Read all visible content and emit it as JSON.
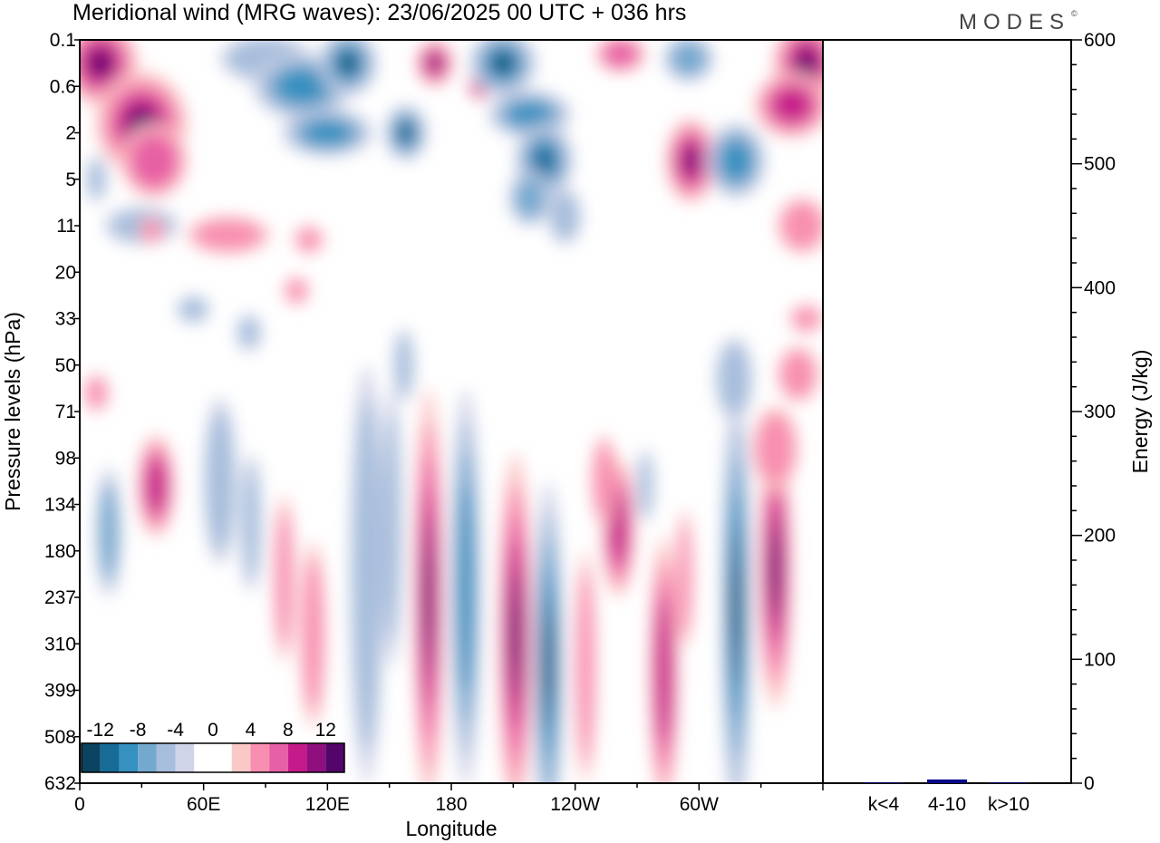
{
  "title": "Meridional wind (MRG waves):  23/06/2025  00 UTC  + 036 hrs",
  "brand": "MODES",
  "brand_mark": "©",
  "colors": {
    "neg": [
      "#0a4460",
      "#176b97",
      "#3690c0",
      "#74a9cf",
      "#a6bddb",
      "#d0d4e8"
    ],
    "pos": [
      "#fbc8c8",
      "#f88fb0",
      "#e75fa5",
      "#c51b8a",
      "#8e0f7d",
      "#54056a"
    ],
    "bar": "#08088a"
  },
  "chart_data": [
    {
      "type": "heatmap",
      "title": "Meridional wind (MRG waves):  23/06/2025  00 UTC  + 036 hrs",
      "xlabel": "Longitude",
      "ylabel": "Pressure levels (hPa)",
      "x_ticks": [
        "0",
        "60E",
        "120E",
        "180",
        "120W",
        "60W"
      ],
      "y_ticks": [
        "0.1",
        "0.6",
        "2",
        "5",
        "11",
        "20",
        "33",
        "50",
        "71",
        "98",
        "134",
        "180",
        "237",
        "310",
        "399",
        "508",
        "632"
      ],
      "colorbar": {
        "levels": [
          -12,
          -8,
          -4,
          0,
          4,
          8,
          12
        ],
        "labels": [
          "-12",
          "-8",
          "-4",
          "0",
          "4",
          "8",
          "12"
        ]
      },
      "features": [
        {
          "lon": 10,
          "lev": 0.5,
          "rx": 18,
          "ry": 0.9,
          "v": 14
        },
        {
          "lon": 30,
          "lev": 1.8,
          "rx": 22,
          "ry": 1.1,
          "v": 13
        },
        {
          "lon": 36,
          "lev": 2.6,
          "rx": 16,
          "ry": 0.8,
          "v": 7
        },
        {
          "lon": 90,
          "lev": 0.4,
          "rx": 22,
          "ry": 0.5,
          "v": -5
        },
        {
          "lon": 108,
          "lev": 1.0,
          "rx": 24,
          "ry": 0.7,
          "v": -8
        },
        {
          "lon": 130,
          "lev": 0.5,
          "rx": 14,
          "ry": 0.7,
          "v": -14
        },
        {
          "lon": 120,
          "lev": 2.0,
          "rx": 22,
          "ry": 0.5,
          "v": -8
        },
        {
          "lon": 158,
          "lev": 2.0,
          "rx": 10,
          "ry": 0.6,
          "v": -13
        },
        {
          "lon": 172,
          "lev": 0.5,
          "rx": 9,
          "ry": 0.5,
          "v": 12
        },
        {
          "lon": 194,
          "lev": 1.0,
          "rx": 6,
          "ry": 0.3,
          "v": 12
        },
        {
          "lon": 205,
          "lev": 0.5,
          "rx": 16,
          "ry": 0.7,
          "v": -14
        },
        {
          "lon": 218,
          "lev": 1.6,
          "rx": 20,
          "ry": 0.5,
          "v": -9
        },
        {
          "lon": 225,
          "lev": 2.6,
          "rx": 14,
          "ry": 0.8,
          "v": -11
        },
        {
          "lon": 218,
          "lev": 3.4,
          "rx": 10,
          "ry": 0.6,
          "v": -6
        },
        {
          "lon": 262,
          "lev": 0.3,
          "rx": 12,
          "ry": 0.4,
          "v": 6
        },
        {
          "lon": 295,
          "lev": 0.4,
          "rx": 12,
          "ry": 0.5,
          "v": -6
        },
        {
          "lon": 296,
          "lev": 2.6,
          "rx": 12,
          "ry": 0.9,
          "v": 12
        },
        {
          "lon": 318,
          "lev": 2.6,
          "rx": 14,
          "ry": 0.8,
          "v": -10
        },
        {
          "lon": 352,
          "lev": 0.5,
          "rx": 16,
          "ry": 0.9,
          "v": 15
        },
        {
          "lon": 345,
          "lev": 1.4,
          "rx": 18,
          "ry": 0.7,
          "v": 8
        },
        {
          "lon": 30,
          "lev": 4.0,
          "rx": 18,
          "ry": 0.4,
          "v": -4
        },
        {
          "lon": 72,
          "lev": 4.2,
          "rx": 20,
          "ry": 0.4,
          "v": 4
        },
        {
          "lon": 235,
          "lev": 3.8,
          "rx": 8,
          "ry": 0.6,
          "v": -4
        },
        {
          "lon": 350,
          "lev": 4.0,
          "rx": 12,
          "ry": 0.6,
          "v": 4
        },
        {
          "lon": 8,
          "lev": 3.0,
          "rx": 5,
          "ry": 0.5,
          "v": -5
        },
        {
          "lon": 37,
          "lev": 9.6,
          "rx": 9,
          "ry": 1.1,
          "v": 9
        },
        {
          "lon": 14,
          "lev": 10.6,
          "rx": 6,
          "ry": 1.4,
          "v": -6
        },
        {
          "lon": 68,
          "lev": 9.5,
          "rx": 8,
          "ry": 1.8,
          "v": -3
        },
        {
          "lon": 83,
          "lev": 10.4,
          "rx": 5,
          "ry": 1.5,
          "v": -5
        },
        {
          "lon": 99,
          "lev": 11.6,
          "rx": 5,
          "ry": 1.8,
          "v": 5
        },
        {
          "lon": 113,
          "lev": 12.8,
          "rx": 6,
          "ry": 2.0,
          "v": 5
        },
        {
          "lon": 139,
          "lev": 11.5,
          "rx": 8,
          "ry": 4.5,
          "v": -5
        },
        {
          "lon": 151,
          "lev": 10.5,
          "rx": 5,
          "ry": 3.0,
          "v": -3
        },
        {
          "lon": 169,
          "lev": 12.0,
          "rx": 7,
          "ry": 4.5,
          "v": 14
        },
        {
          "lon": 187,
          "lev": 11.8,
          "rx": 7,
          "ry": 4.3,
          "v": -10
        },
        {
          "lon": 211,
          "lev": 12.8,
          "rx": 8,
          "ry": 3.9,
          "v": 14
        },
        {
          "lon": 227,
          "lev": 13.4,
          "rx": 7,
          "ry": 3.9,
          "v": -15
        },
        {
          "lon": 245,
          "lev": 13.5,
          "rx": 5,
          "ry": 2.5,
          "v": 4
        },
        {
          "lon": 261,
          "lev": 10.5,
          "rx": 8,
          "ry": 1.5,
          "v": 9
        },
        {
          "lon": 254,
          "lev": 9.5,
          "rx": 6,
          "ry": 1.0,
          "v": 3
        },
        {
          "lon": 274,
          "lev": 9.6,
          "rx": 4,
          "ry": 0.8,
          "v": -4
        },
        {
          "lon": 283,
          "lev": 13.6,
          "rx": 7,
          "ry": 2.9,
          "v": 8
        },
        {
          "lon": 293,
          "lev": 11.6,
          "rx": 4,
          "ry": 1.5,
          "v": 4
        },
        {
          "lon": 318,
          "lev": 12.2,
          "rx": 7,
          "ry": 4.7,
          "v": -15
        },
        {
          "lon": 337,
          "lev": 11.4,
          "rx": 8,
          "ry": 3.0,
          "v": 14
        },
        {
          "lon": 337,
          "lev": 8.8,
          "rx": 11,
          "ry": 0.9,
          "v": 5
        },
        {
          "lon": 317,
          "lev": 7.3,
          "rx": 9,
          "ry": 0.9,
          "v": -3
        },
        {
          "lon": 348,
          "lev": 7.2,
          "rx": 10,
          "ry": 0.6,
          "v": 3
        },
        {
          "lon": 157,
          "lev": 7.0,
          "rx": 5,
          "ry": 0.8,
          "v": -3
        },
        {
          "lon": 82,
          "lev": 6.3,
          "rx": 6,
          "ry": 0.4,
          "v": -3
        },
        {
          "lon": 8,
          "lev": 7.6,
          "rx": 6,
          "ry": 0.4,
          "v": 4
        },
        {
          "lon": 105,
          "lev": 5.4,
          "rx": 6,
          "ry": 0.3,
          "v": 3
        },
        {
          "lon": 111,
          "lev": 4.3,
          "rx": 7,
          "ry": 0.3,
          "v": 3
        },
        {
          "lon": 55,
          "lev": 5.8,
          "rx": 8,
          "ry": 0.3,
          "v": -3
        },
        {
          "lon": 352,
          "lev": 6.0,
          "rx": 8,
          "ry": 0.3,
          "v": 4
        },
        {
          "lon": 35,
          "lev": 4.1,
          "rx": 6,
          "ry": 0.3,
          "v": 3
        }
      ]
    },
    {
      "type": "bar",
      "ylabel": "Energy (J/kg)",
      "categories": [
        "k<4",
        "4-10",
        "k>10"
      ],
      "values": [
        0.5,
        3,
        0.5
      ],
      "ylim": [
        0,
        600
      ],
      "y_ticks": [
        "0",
        "100",
        "200",
        "300",
        "400",
        "500",
        "600"
      ]
    }
  ]
}
